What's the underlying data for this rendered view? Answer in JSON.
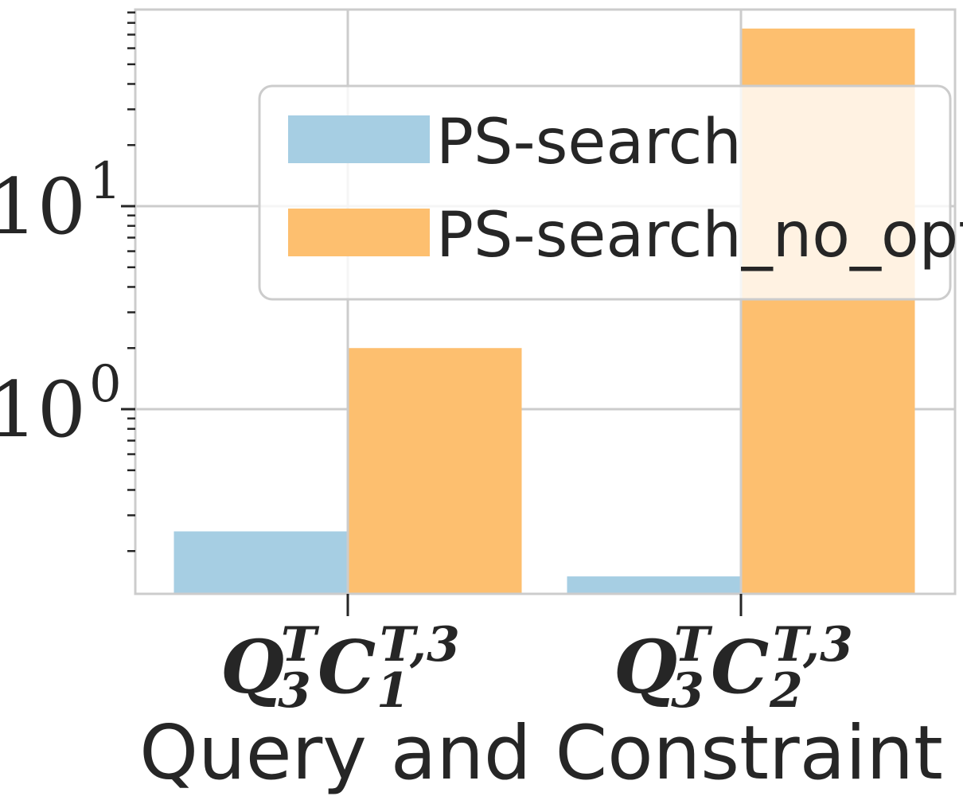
{
  "chart_data": {
    "type": "bar",
    "yscale": "log",
    "ylim": [
      0.12,
      90
    ],
    "grid": true,
    "legend_placement": "upper right",
    "xlabel": "Query and Constraint",
    "ylabel": "",
    "ytick_labels": [
      {
        "base": "10",
        "exp": "0",
        "value": 1
      },
      {
        "base": "10",
        "exp": "1",
        "value": 10
      }
    ],
    "categories": [
      {
        "main": "Q",
        "main_sub": "3",
        "main_sup": "T",
        "second": "C",
        "second_sub": "1",
        "second_sup": "T,3"
      },
      {
        "main": "Q",
        "main_sub": "3",
        "main_sup": "T",
        "second": "C",
        "second_sub": "2",
        "second_sup": "T,3"
      }
    ],
    "series": [
      {
        "name": "PS-search",
        "color": "#a6cee3",
        "values": [
          0.25,
          0.15
        ]
      },
      {
        "name": "PS-search_no_opt",
        "color": "#fdbf6f",
        "values": [
          2.0,
          75
        ]
      }
    ]
  }
}
